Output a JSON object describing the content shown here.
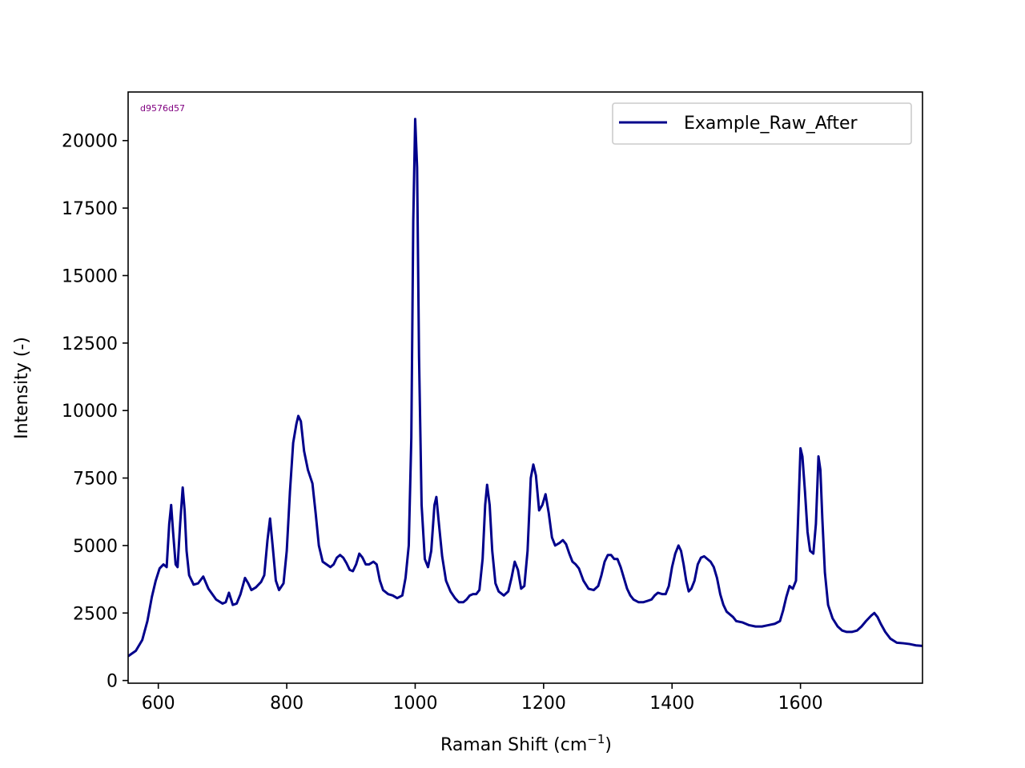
{
  "chart_data": {
    "type": "line",
    "title": "",
    "xlabel": "Raman Shift (cm",
    "xlabel_sup": "−1",
    "xlabel_close": ")",
    "ylabel": "Intensity (-)",
    "xlim": [
      553,
      1790
    ],
    "ylim": [
      -100,
      21800
    ],
    "xticks": [
      600,
      800,
      1000,
      1200,
      1400,
      1600
    ],
    "yticks": [
      0,
      2500,
      5000,
      7500,
      10000,
      12500,
      15000,
      17500,
      20000
    ],
    "grid": false,
    "legend_position": "upper right",
    "series_color": "#00008b",
    "annotation": "d9576d57",
    "annotation_color": "#800080",
    "series": [
      {
        "name": "Example_Raw_After",
        "points": [
          [
            553,
            900
          ],
          [
            565,
            1100
          ],
          [
            575,
            1500
          ],
          [
            583,
            2200
          ],
          [
            590,
            3100
          ],
          [
            596,
            3700
          ],
          [
            602,
            4150
          ],
          [
            608,
            4300
          ],
          [
            613,
            4200
          ],
          [
            617,
            5800
          ],
          [
            620,
            6500
          ],
          [
            623,
            5500
          ],
          [
            627,
            4300
          ],
          [
            630,
            4200
          ],
          [
            634,
            5800
          ],
          [
            638,
            7150
          ],
          [
            641,
            6300
          ],
          [
            644,
            4800
          ],
          [
            648,
            3900
          ],
          [
            655,
            3550
          ],
          [
            662,
            3600
          ],
          [
            670,
            3850
          ],
          [
            678,
            3400
          ],
          [
            690,
            3000
          ],
          [
            700,
            2850
          ],
          [
            705,
            2900
          ],
          [
            710,
            3250
          ],
          [
            716,
            2800
          ],
          [
            722,
            2850
          ],
          [
            728,
            3200
          ],
          [
            735,
            3800
          ],
          [
            740,
            3600
          ],
          [
            745,
            3350
          ],
          [
            752,
            3450
          ],
          [
            760,
            3650
          ],
          [
            765,
            3900
          ],
          [
            770,
            5200
          ],
          [
            774,
            6000
          ],
          [
            778,
            5000
          ],
          [
            783,
            3700
          ],
          [
            788,
            3350
          ],
          [
            795,
            3600
          ],
          [
            800,
            4800
          ],
          [
            805,
            7000
          ],
          [
            810,
            8800
          ],
          [
            815,
            9500
          ],
          [
            818,
            9800
          ],
          [
            822,
            9600
          ],
          [
            827,
            8500
          ],
          [
            833,
            7800
          ],
          [
            840,
            7300
          ],
          [
            845,
            6200
          ],
          [
            850,
            5000
          ],
          [
            856,
            4400
          ],
          [
            862,
            4300
          ],
          [
            868,
            4200
          ],
          [
            873,
            4300
          ],
          [
            878,
            4550
          ],
          [
            883,
            4650
          ],
          [
            888,
            4550
          ],
          [
            893,
            4350
          ],
          [
            898,
            4100
          ],
          [
            903,
            4050
          ],
          [
            908,
            4300
          ],
          [
            913,
            4700
          ],
          [
            918,
            4550
          ],
          [
            923,
            4300
          ],
          [
            928,
            4300
          ],
          [
            935,
            4400
          ],
          [
            940,
            4300
          ],
          [
            945,
            3700
          ],
          [
            950,
            3350
          ],
          [
            958,
            3200
          ],
          [
            965,
            3150
          ],
          [
            972,
            3050
          ],
          [
            980,
            3150
          ],
          [
            985,
            3800
          ],
          [
            990,
            5000
          ],
          [
            994,
            9000
          ],
          [
            997,
            17000
          ],
          [
            1000,
            20800
          ],
          [
            1003,
            19000
          ],
          [
            1006,
            12000
          ],
          [
            1010,
            6500
          ],
          [
            1015,
            4500
          ],
          [
            1020,
            4200
          ],
          [
            1025,
            4800
          ],
          [
            1030,
            6500
          ],
          [
            1033,
            6800
          ],
          [
            1037,
            5800
          ],
          [
            1042,
            4600
          ],
          [
            1048,
            3700
          ],
          [
            1055,
            3300
          ],
          [
            1062,
            3050
          ],
          [
            1068,
            2900
          ],
          [
            1075,
            2900
          ],
          [
            1080,
            3000
          ],
          [
            1085,
            3150
          ],
          [
            1090,
            3200
          ],
          [
            1095,
            3200
          ],
          [
            1100,
            3350
          ],
          [
            1105,
            4500
          ],
          [
            1109,
            6500
          ],
          [
            1112,
            7250
          ],
          [
            1116,
            6500
          ],
          [
            1120,
            4800
          ],
          [
            1125,
            3600
          ],
          [
            1130,
            3300
          ],
          [
            1138,
            3150
          ],
          [
            1145,
            3300
          ],
          [
            1150,
            3800
          ],
          [
            1155,
            4400
          ],
          [
            1160,
            4100
          ],
          [
            1165,
            3400
          ],
          [
            1170,
            3500
          ],
          [
            1175,
            4800
          ],
          [
            1180,
            7500
          ],
          [
            1184,
            8000
          ],
          [
            1188,
            7600
          ],
          [
            1193,
            6300
          ],
          [
            1198,
            6500
          ],
          [
            1203,
            6900
          ],
          [
            1208,
            6200
          ],
          [
            1213,
            5300
          ],
          [
            1218,
            5000
          ],
          [
            1225,
            5100
          ],
          [
            1230,
            5200
          ],
          [
            1235,
            5050
          ],
          [
            1240,
            4700
          ],
          [
            1245,
            4400
          ],
          [
            1250,
            4300
          ],
          [
            1255,
            4150
          ],
          [
            1262,
            3700
          ],
          [
            1270,
            3400
          ],
          [
            1278,
            3350
          ],
          [
            1285,
            3500
          ],
          [
            1290,
            3900
          ],
          [
            1295,
            4400
          ],
          [
            1300,
            4650
          ],
          [
            1305,
            4650
          ],
          [
            1310,
            4500
          ],
          [
            1315,
            4500
          ],
          [
            1320,
            4200
          ],
          [
            1325,
            3800
          ],
          [
            1330,
            3400
          ],
          [
            1335,
            3150
          ],
          [
            1340,
            3000
          ],
          [
            1348,
            2900
          ],
          [
            1355,
            2900
          ],
          [
            1362,
            2950
          ],
          [
            1368,
            3000
          ],
          [
            1373,
            3150
          ],
          [
            1378,
            3250
          ],
          [
            1385,
            3200
          ],
          [
            1390,
            3200
          ],
          [
            1395,
            3500
          ],
          [
            1400,
            4200
          ],
          [
            1405,
            4700
          ],
          [
            1410,
            5000
          ],
          [
            1414,
            4800
          ],
          [
            1418,
            4300
          ],
          [
            1422,
            3700
          ],
          [
            1426,
            3300
          ],
          [
            1430,
            3400
          ],
          [
            1435,
            3700
          ],
          [
            1440,
            4300
          ],
          [
            1445,
            4550
          ],
          [
            1450,
            4600
          ],
          [
            1455,
            4500
          ],
          [
            1460,
            4400
          ],
          [
            1465,
            4200
          ],
          [
            1470,
            3800
          ],
          [
            1475,
            3200
          ],
          [
            1480,
            2800
          ],
          [
            1485,
            2550
          ],
          [
            1490,
            2450
          ],
          [
            1495,
            2350
          ],
          [
            1500,
            2200
          ],
          [
            1510,
            2150
          ],
          [
            1520,
            2050
          ],
          [
            1530,
            2000
          ],
          [
            1540,
            2000
          ],
          [
            1550,
            2050
          ],
          [
            1560,
            2100
          ],
          [
            1568,
            2200
          ],
          [
            1573,
            2600
          ],
          [
            1578,
            3100
          ],
          [
            1583,
            3500
          ],
          [
            1588,
            3400
          ],
          [
            1593,
            3700
          ],
          [
            1597,
            6500
          ],
          [
            1600,
            8600
          ],
          [
            1603,
            8300
          ],
          [
            1607,
            7000
          ],
          [
            1611,
            5500
          ],
          [
            1615,
            4800
          ],
          [
            1620,
            4700
          ],
          [
            1624,
            5800
          ],
          [
            1628,
            8300
          ],
          [
            1631,
            7800
          ],
          [
            1634,
            6000
          ],
          [
            1638,
            4000
          ],
          [
            1643,
            2800
          ],
          [
            1650,
            2300
          ],
          [
            1658,
            2000
          ],
          [
            1665,
            1850
          ],
          [
            1672,
            1800
          ],
          [
            1680,
            1800
          ],
          [
            1688,
            1850
          ],
          [
            1695,
            2000
          ],
          [
            1702,
            2200
          ],
          [
            1710,
            2400
          ],
          [
            1715,
            2500
          ],
          [
            1720,
            2350
          ],
          [
            1725,
            2100
          ],
          [
            1732,
            1800
          ],
          [
            1740,
            1550
          ],
          [
            1750,
            1400
          ],
          [
            1760,
            1380
          ],
          [
            1770,
            1350
          ],
          [
            1780,
            1300
          ],
          [
            1790,
            1280
          ]
        ]
      }
    ]
  }
}
